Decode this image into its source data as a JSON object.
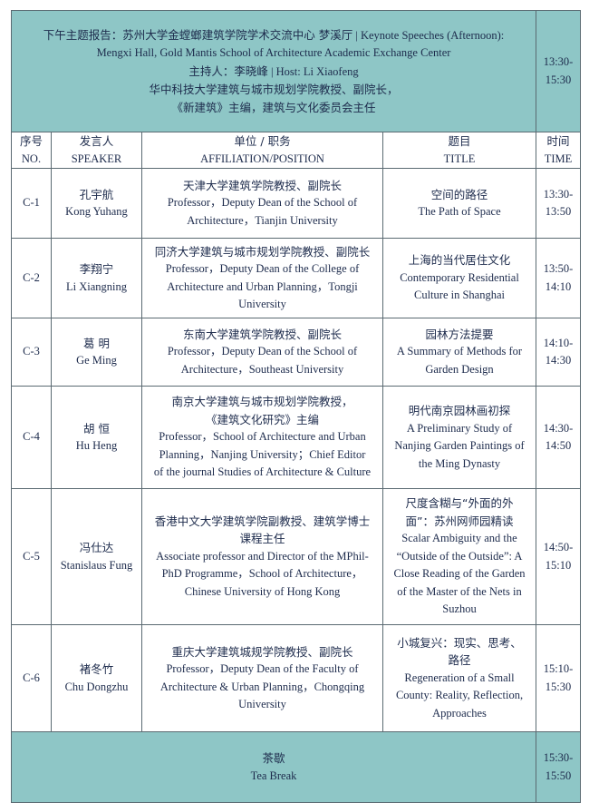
{
  "session": {
    "title_zh": "下午主题报告：苏州大学金螳螂建筑学院学术交流中心 梦溪厅",
    "title_en": "| Keynote Speeches (Afternoon):",
    "venue_en": "Mengxi Hall, Gold Mantis School of Architecture Academic Exchange Center",
    "host_zh": "主持人：李晓峰",
    "host_en": "| Host: Li Xiaofeng",
    "host_affil_1": "华中科技大学建筑与城市规划学院教授、副院长，",
    "host_affil_2": "《新建筑》主编，建筑与文化委员会主任",
    "time_start": "13:30-",
    "time_end": "15:30"
  },
  "columns": {
    "no_zh": "序号",
    "no_en": "NO.",
    "speaker_zh": "发言人",
    "speaker_en": "SPEAKER",
    "affil_zh": "单位 / 职务",
    "affil_en": "AFFILIATION/POSITION",
    "title_zh": "题目",
    "title_en": "TITLE",
    "time_zh": "时间",
    "time_en": "TIME"
  },
  "rows": [
    {
      "no": "C-1",
      "name_zh": "孔宇航",
      "name_en": "Kong Yuhang",
      "affil": [
        "天津大学建筑学院教授、副院长",
        "Professor，Deputy Dean of the School of",
        "Architecture，Tianjin University"
      ],
      "title": [
        "空间的路径",
        "The Path of Space"
      ],
      "t1": "13:30-",
      "t2": "13:50"
    },
    {
      "no": "C-2",
      "name_zh": "李翔宁",
      "name_en": "Li Xiangning",
      "affil": [
        "同济大学建筑与城市规划学院教授、副院长",
        "Professor，Deputy Dean of the College of",
        "Architecture and Urban Planning，Tongji",
        "University"
      ],
      "title": [
        "上海的当代居住文化",
        "Contemporary Residential",
        "Culture in Shanghai"
      ],
      "t1": "13:50-",
      "t2": "14:10"
    },
    {
      "no": "C-3",
      "name_zh": "葛 明",
      "name_en": "Ge Ming",
      "affil": [
        "东南大学建筑学院教授、副院长",
        "Professor，Deputy Dean of the School of",
        "Architecture，Southeast University"
      ],
      "title": [
        "园林方法提要",
        "A Summary of Methods for",
        "Garden Design"
      ],
      "t1": "14:10-",
      "t2": "14:30"
    },
    {
      "no": "C-4",
      "name_zh": "胡 恒",
      "name_en": "Hu Heng",
      "affil": [
        "南京大学建筑与城市规划学院教授，",
        "《建筑文化研究》主编",
        "Professor，School of Architecture and Urban",
        "Planning，Nanjing University；Chief Editor",
        "of the journal Studies of Architecture & Culture"
      ],
      "title": [
        "明代南京园林画初探",
        "A Preliminary Study of",
        "Nanjing Garden Paintings of",
        "the Ming Dynasty"
      ],
      "t1": "14:30-",
      "t2": "14:50"
    },
    {
      "no": "C-5",
      "name_zh": "冯仕达",
      "name_en": "Stanislaus Fung",
      "affil": [
        "香港中文大学建筑学院副教授、建筑学博士",
        "课程主任",
        "Associate professor and Director of the MPhil-",
        "PhD Programme，School of Architecture，",
        "Chinese University of Hong Kong"
      ],
      "title": [
        "尺度含糊与“外面的外",
        "面”：苏州网师园精读",
        "Scalar Ambiguity and the",
        "“Outside of the Outside”: A",
        "Close Reading of the Garden",
        "of the Master of the Nets in",
        "Suzhou"
      ],
      "t1": "14:50-",
      "t2": "15:10"
    },
    {
      "no": "C-6",
      "name_zh": "褚冬竹",
      "name_en": "Chu Dongzhu",
      "affil": [
        "重庆大学建筑城规学院教授、副院长",
        "Professor，Deputy Dean of the Faculty of",
        "Architecture & Urban Planning，Chongqing",
        "University"
      ],
      "title": [
        "小城复兴：现实、思考、",
        "路径",
        "Regeneration of a Small",
        "County: Reality, Reflection,",
        "Approaches"
      ],
      "t1": "15:10-",
      "t2": "15:30"
    }
  ],
  "break": {
    "zh": "茶歇",
    "en": "Tea Break",
    "t1": "15:30-",
    "t2": "15:50"
  },
  "colors": {
    "header_bg": "#8ec6c6",
    "text": "#1d2b4c",
    "border": "#5a6a72"
  }
}
